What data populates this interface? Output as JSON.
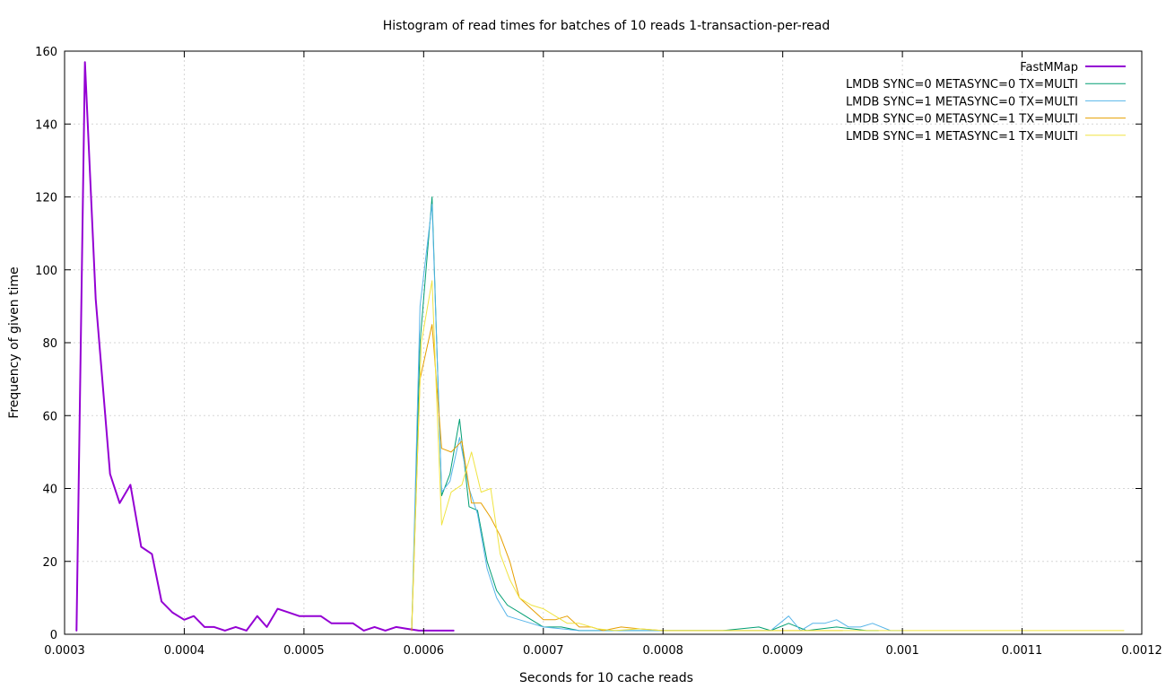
{
  "chart_data": {
    "type": "line",
    "title": "Histogram of read times for batches of 10 reads 1-transaction-per-read",
    "xlabel": "Seconds for 10 cache reads",
    "ylabel": "Frequency of given time",
    "xlim": [
      0.0003,
      0.0012
    ],
    "ylim": [
      0,
      160
    ],
    "grid": "dotted",
    "legend_position": "top-right",
    "xticks": [
      {
        "value": 0.0003,
        "label": "0.0003"
      },
      {
        "value": 0.0004,
        "label": "0.0004"
      },
      {
        "value": 0.0005,
        "label": "0.0005"
      },
      {
        "value": 0.0006,
        "label": "0.0006"
      },
      {
        "value": 0.0007,
        "label": "0.0007"
      },
      {
        "value": 0.0008,
        "label": "0.0008"
      },
      {
        "value": 0.0009,
        "label": "0.0009"
      },
      {
        "value": 0.001,
        "label": "0.001"
      },
      {
        "value": 0.0011,
        "label": "0.0011"
      },
      {
        "value": 0.0012,
        "label": "0.0012"
      }
    ],
    "yticks": [
      {
        "value": 0,
        "label": "0"
      },
      {
        "value": 20,
        "label": "20"
      },
      {
        "value": 40,
        "label": "40"
      },
      {
        "value": 60,
        "label": "60"
      },
      {
        "value": 80,
        "label": "80"
      },
      {
        "value": 100,
        "label": "100"
      },
      {
        "value": 120,
        "label": "120"
      },
      {
        "value": 140,
        "label": "140"
      },
      {
        "value": 160,
        "label": "160"
      }
    ],
    "series": [
      {
        "name": "FastMMap",
        "color": "#9400d3",
        "width": 2,
        "x": [
          0.00031,
          0.000317,
          0.000326,
          0.000338,
          0.000346,
          0.000355,
          0.000364,
          0.000373,
          0.000381,
          0.00039,
          0.0004,
          0.000408,
          0.000417,
          0.000425,
          0.000434,
          0.000443,
          0.000452,
          0.000461,
          0.000469,
          0.000478,
          0.000487,
          0.000496,
          0.000505,
          0.000514,
          0.000523,
          0.000532,
          0.000541,
          0.00055,
          0.000559,
          0.000568,
          0.000577,
          0.000586,
          0.000596,
          0.000604,
          0.000613,
          0.000625
        ],
        "y": [
          1,
          157,
          92,
          44,
          36,
          41,
          24,
          22,
          9,
          6,
          4,
          5,
          2,
          2,
          1,
          2,
          1,
          5,
          2,
          7,
          6,
          5,
          5,
          5,
          3,
          3,
          3,
          1,
          2,
          1,
          2,
          1.5,
          1,
          1,
          1,
          1
        ]
      },
      {
        "name": "LMDB SYNC=0 METASYNC=0 TX=MULTI",
        "color": "#009e73",
        "width": 1,
        "x": [
          0.00059,
          0.000597,
          0.000607,
          0.000615,
          0.000622,
          0.00063,
          0.000638,
          0.000645,
          0.000653,
          0.000661,
          0.00067,
          0.00068,
          0.00069,
          0.0007,
          0.000715,
          0.00073,
          0.00075,
          0.00077,
          0.0008,
          0.00085,
          0.00088,
          0.00089,
          0.000905,
          0.00092,
          0.000945,
          0.00097,
          0.00098
        ],
        "y": [
          1,
          80,
          120,
          38,
          44,
          59,
          35,
          34,
          20,
          12,
          8,
          6,
          4,
          2,
          2,
          1,
          1,
          1,
          1,
          1,
          2,
          1,
          3,
          1,
          2,
          1,
          1
        ]
      },
      {
        "name": "LMDB SYNC=1 METASYNC=0 TX=MULTI",
        "color": "#56b4e9",
        "width": 1,
        "x": [
          0.00059,
          0.000597,
          0.000607,
          0.000615,
          0.000622,
          0.00063,
          0.000638,
          0.000645,
          0.000653,
          0.000661,
          0.00067,
          0.00068,
          0.00069,
          0.0007,
          0.000715,
          0.00073,
          0.00075,
          0.00078,
          0.0008,
          0.00085,
          0.00088,
          0.00089,
          0.000905,
          0.000915,
          0.000925,
          0.000935,
          0.000945,
          0.000955,
          0.000965,
          0.000975,
          0.00099,
          0.001
        ],
        "y": [
          1,
          90,
          118,
          39,
          42,
          54,
          40,
          33,
          18,
          10,
          5,
          4,
          3,
          2,
          1.5,
          1,
          1,
          1,
          1,
          1,
          1,
          1,
          5,
          1,
          3,
          3,
          4,
          2,
          2,
          3,
          1,
          1
        ]
      },
      {
        "name": "LMDB SYNC=0 METASYNC=1 TX=MULTI",
        "color": "#e69f00",
        "width": 1,
        "x": [
          0.00059,
          0.000597,
          0.000607,
          0.000615,
          0.000623,
          0.000632,
          0.00064,
          0.000648,
          0.000656,
          0.000664,
          0.000672,
          0.00068,
          0.00069,
          0.0007,
          0.00071,
          0.00072,
          0.00073,
          0.00074,
          0.00075,
          0.000765,
          0.00078,
          0.0008,
          0.00085,
          0.0009,
          0.00095
        ],
        "y": [
          1,
          70,
          85,
          51,
          50,
          53,
          36,
          36,
          32,
          27,
          20,
          10,
          7,
          4,
          4,
          5,
          2,
          2,
          1,
          2,
          1.5,
          1,
          1,
          1,
          1
        ]
      },
      {
        "name": "LMDB SYNC=1 METASYNC=1 TX=MULTI",
        "color": "#f0e442",
        "width": 1,
        "x": [
          0.00059,
          0.000598,
          0.000607,
          0.000615,
          0.000623,
          0.000632,
          0.00064,
          0.000648,
          0.000656,
          0.000664,
          0.000672,
          0.00068,
          0.00069,
          0.0007,
          0.00071,
          0.00072,
          0.00073,
          0.000745,
          0.00076,
          0.00078,
          0.0008,
          0.00085,
          0.0009,
          0.00095,
          0.001,
          0.00105,
          0.0011,
          0.00115,
          0.001185
        ],
        "y": [
          2,
          80,
          97,
          30,
          39,
          41,
          50,
          39,
          40,
          22,
          15,
          10,
          8,
          7,
          5,
          3,
          3,
          1.5,
          1,
          1.5,
          1,
          1,
          1,
          1,
          1,
          1,
          1,
          1,
          1
        ]
      }
    ]
  }
}
